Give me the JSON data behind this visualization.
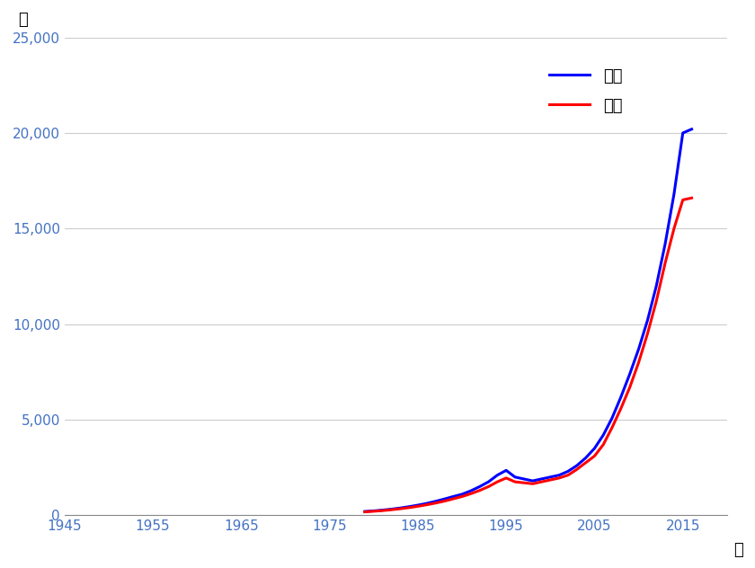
{
  "title_y_label": "人",
  "title_x_label": "年",
  "legend_male": "男子",
  "legend_female": "女子",
  "male_color": "#0000FF",
  "female_color": "#FF0000",
  "line_width": 2.2,
  "xlim": [
    1945,
    2020
  ],
  "ylim": [
    0,
    25000
  ],
  "xticks": [
    1945,
    1955,
    1965,
    1975,
    1985,
    1995,
    2005,
    2015
  ],
  "yticks": [
    0,
    5000,
    10000,
    15000,
    20000,
    25000
  ],
  "years_male": [
    1979,
    1980,
    1981,
    1982,
    1983,
    1984,
    1985,
    1986,
    1987,
    1988,
    1989,
    1990,
    1991,
    1992,
    1993,
    1994,
    1995,
    1996,
    1997,
    1998,
    1999,
    2000,
    2001,
    2002,
    2003,
    2004,
    2005,
    2006,
    2007,
    2008,
    2009,
    2010,
    2011,
    2012,
    2013,
    2014,
    2015,
    2016
  ],
  "values_male": [
    200,
    230,
    270,
    320,
    380,
    450,
    530,
    620,
    730,
    850,
    980,
    1100,
    1280,
    1500,
    1750,
    2100,
    2350,
    2000,
    1900,
    1800,
    1900,
    2000,
    2100,
    2300,
    2600,
    3000,
    3500,
    4200,
    5100,
    6200,
    7400,
    8700,
    10200,
    12000,
    14200,
    16800,
    20000,
    20200
  ],
  "years_female": [
    1979,
    1980,
    1981,
    1982,
    1983,
    1984,
    1985,
    1986,
    1987,
    1988,
    1989,
    1990,
    1991,
    1992,
    1993,
    1994,
    1995,
    1996,
    1997,
    1998,
    1999,
    2000,
    2001,
    2002,
    2003,
    2004,
    2005,
    2006,
    2007,
    2008,
    2009,
    2010,
    2011,
    2012,
    2013,
    2014,
    2015,
    2016
  ],
  "values_female": [
    180,
    210,
    245,
    290,
    340,
    400,
    470,
    550,
    640,
    740,
    860,
    980,
    1130,
    1300,
    1500,
    1750,
    1950,
    1750,
    1700,
    1650,
    1750,
    1850,
    1950,
    2100,
    2400,
    2750,
    3100,
    3700,
    4600,
    5600,
    6700,
    8000,
    9500,
    11200,
    13200,
    15000,
    16500,
    16600
  ],
  "background_color": "#FFFFFF",
  "grid_color": "#AAAAAA",
  "grid_alpha": 0.6,
  "tick_color": "#4472C4",
  "tick_fontsize": 11,
  "legend_fontsize": 13
}
